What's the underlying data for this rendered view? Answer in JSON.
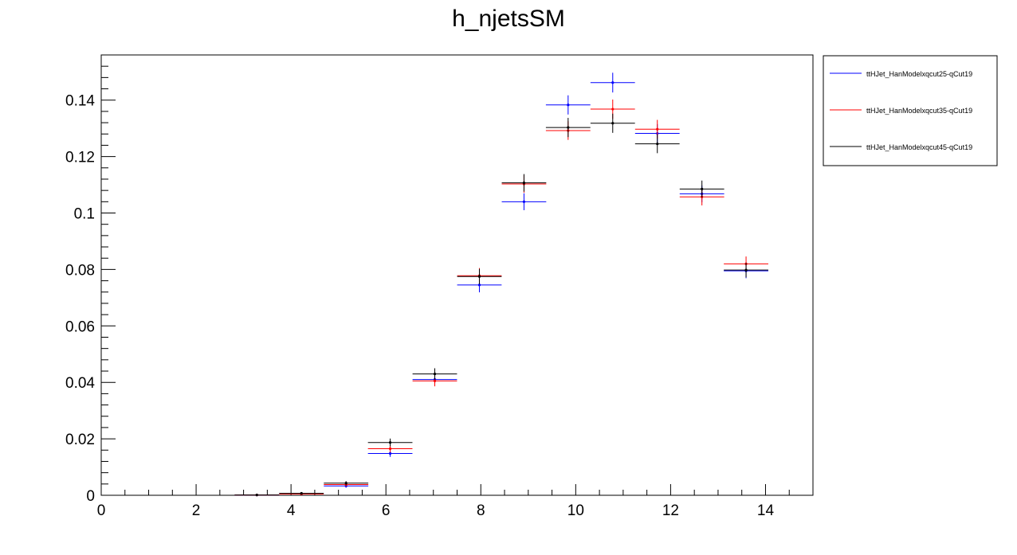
{
  "chart_data": {
    "type": "scatter",
    "title": "h_njetsSM",
    "xlabel": "",
    "ylabel": "",
    "xlim": [
      0,
      15
    ],
    "ylim": [
      0,
      0.156
    ],
    "x_ticks": [
      0,
      2,
      4,
      6,
      8,
      10,
      12,
      14
    ],
    "y_ticks": [
      0,
      0.02,
      0.04,
      0.06,
      0.08,
      0.1,
      0.12,
      0.14
    ],
    "x_tick_labels": [
      "0",
      "2",
      "4",
      "6",
      "8",
      "10",
      "12",
      "14"
    ],
    "y_tick_labels": [
      "0",
      "0.02",
      "0.04",
      "0.06",
      "0.08",
      "0.1",
      "0.12",
      "0.14"
    ],
    "grid": false,
    "legend_position": "top-right, outside plot",
    "bin_width": 0.9375,
    "series": [
      {
        "name": "ttHJet_HanModelxqcut25-qCut19",
        "color": "#0000ff",
        "points": [
          {
            "x": 3.28,
            "y": 0.0001,
            "err": 5e-05
          },
          {
            "x": 4.22,
            "y": 0.0006,
            "err": 0.0002
          },
          {
            "x": 5.16,
            "y": 0.0033,
            "err": 0.0006
          },
          {
            "x": 6.09,
            "y": 0.0148,
            "err": 0.0012
          },
          {
            "x": 7.03,
            "y": 0.041,
            "err": 0.0019
          },
          {
            "x": 7.97,
            "y": 0.0745,
            "err": 0.0026
          },
          {
            "x": 8.91,
            "y": 0.104,
            "err": 0.003
          },
          {
            "x": 9.84,
            "y": 0.1383,
            "err": 0.0034
          },
          {
            "x": 10.78,
            "y": 0.1462,
            "err": 0.0035
          },
          {
            "x": 11.72,
            "y": 0.1282,
            "err": 0.0033
          },
          {
            "x": 12.66,
            "y": 0.1068,
            "err": 0.003
          },
          {
            "x": 13.59,
            "y": 0.0795,
            "err": 0.0026
          }
        ]
      },
      {
        "name": "ttHJet_HanModelxqcut35-qCut19",
        "color": "#ff0000",
        "points": [
          {
            "x": 3.28,
            "y": 0.0001,
            "err": 5e-05
          },
          {
            "x": 4.22,
            "y": 0.0005,
            "err": 0.0002
          },
          {
            "x": 5.16,
            "y": 0.0038,
            "err": 0.0006
          },
          {
            "x": 6.09,
            "y": 0.0165,
            "err": 0.0013
          },
          {
            "x": 7.03,
            "y": 0.0405,
            "err": 0.0019
          },
          {
            "x": 7.97,
            "y": 0.0778,
            "err": 0.0027
          },
          {
            "x": 8.91,
            "y": 0.1103,
            "err": 0.0031
          },
          {
            "x": 9.84,
            "y": 0.1292,
            "err": 0.0033
          },
          {
            "x": 10.78,
            "y": 0.1368,
            "err": 0.0034
          },
          {
            "x": 11.72,
            "y": 0.1297,
            "err": 0.0033
          },
          {
            "x": 12.66,
            "y": 0.1057,
            "err": 0.003
          },
          {
            "x": 13.59,
            "y": 0.082,
            "err": 0.0026
          }
        ]
      },
      {
        "name": "ttHJet_HanModelxqcut45-qCut19",
        "color": "#000000",
        "points": [
          {
            "x": 3.28,
            "y": 0.0001,
            "err": 5e-05
          },
          {
            "x": 4.22,
            "y": 0.0007,
            "err": 0.0002
          },
          {
            "x": 5.16,
            "y": 0.0043,
            "err": 0.0007
          },
          {
            "x": 6.09,
            "y": 0.0187,
            "err": 0.0014
          },
          {
            "x": 7.03,
            "y": 0.043,
            "err": 0.002
          },
          {
            "x": 7.97,
            "y": 0.0775,
            "err": 0.0027
          },
          {
            "x": 8.91,
            "y": 0.1107,
            "err": 0.0031
          },
          {
            "x": 9.84,
            "y": 0.1303,
            "err": 0.0034
          },
          {
            "x": 10.78,
            "y": 0.1318,
            "err": 0.0034
          },
          {
            "x": 11.72,
            "y": 0.1245,
            "err": 0.0033
          },
          {
            "x": 12.66,
            "y": 0.1085,
            "err": 0.003
          },
          {
            "x": 13.59,
            "y": 0.0798,
            "err": 0.0026
          }
        ]
      }
    ]
  }
}
